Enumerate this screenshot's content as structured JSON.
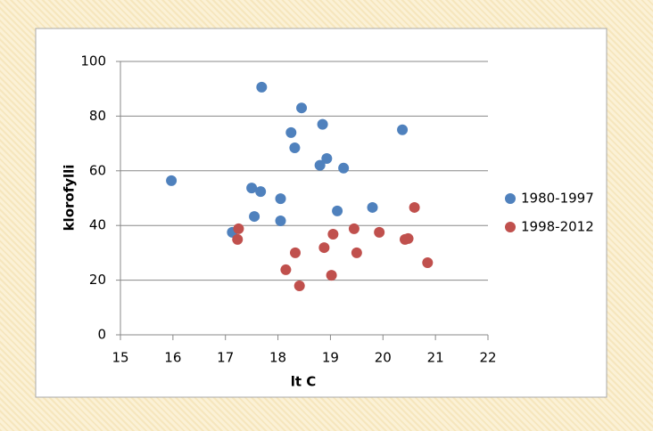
{
  "chart_data": {
    "type": "scatter",
    "x_label": "lt C",
    "y_label": "klorofylli",
    "xlim": [
      15,
      22
    ],
    "xticks": [
      15,
      16,
      17,
      18,
      19,
      20,
      21,
      22
    ],
    "ylim": [
      0,
      100
    ],
    "yticks": [
      0,
      20,
      40,
      60,
      80,
      100
    ],
    "grid": true,
    "legend": "right",
    "series": [
      {
        "name": "1980-1997",
        "color": "#4f81bd",
        "x": [
          15.97,
          17.69,
          18.45,
          18.25,
          18.85,
          18.32,
          18.93,
          18.8,
          19.25,
          20.37,
          17.5,
          17.67,
          18.05,
          17.55,
          18.05,
          19.13,
          19.8,
          17.13
        ],
        "values": [
          56.4,
          90.6,
          83,
          74,
          77,
          68.4,
          64.5,
          62,
          61,
          75,
          53.7,
          52.4,
          49.8,
          43.3,
          41.7,
          45.3,
          46.6,
          37.5
        ]
      },
      {
        "name": "1998-2012",
        "color": "#c0504d",
        "x": [
          17.25,
          17.23,
          18.33,
          18.15,
          18.41,
          18.88,
          19.05,
          19.45,
          19.5,
          19.02,
          19.93,
          20.42,
          20.48,
          20.6,
          20.85
        ],
        "values": [
          38.8,
          34.9,
          30,
          23.8,
          17.9,
          31.9,
          36.8,
          38.8,
          30,
          21.8,
          37.5,
          34.9,
          35.2,
          46.6,
          26.4
        ]
      }
    ]
  }
}
